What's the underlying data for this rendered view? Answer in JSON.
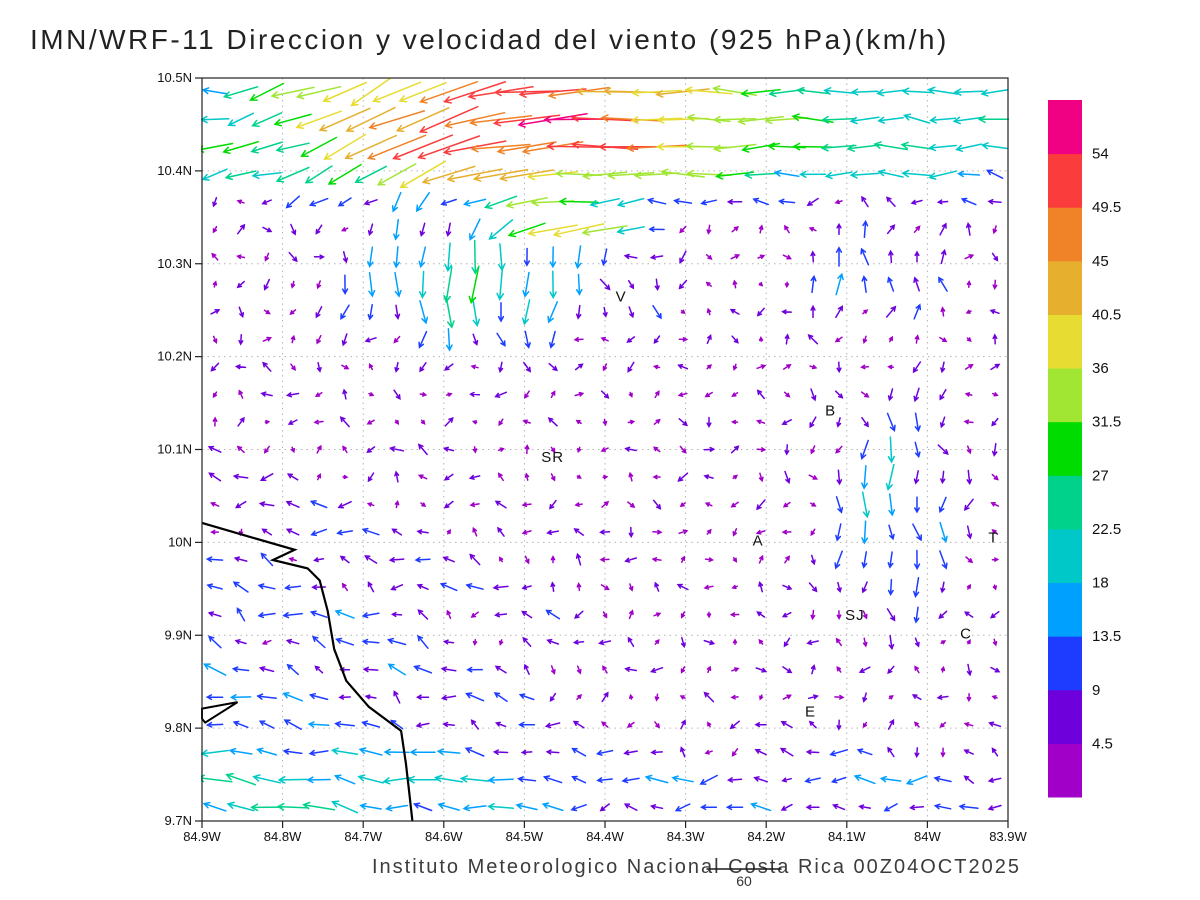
{
  "chart_data": {
    "type": "vector_field",
    "title": "IMN/WRF-11 Direccion y velocidad del viento (925 hPa)(km/h)",
    "footer": "Instituto Meteorologico Nacional Costa Rica 00Z04OCT2025",
    "model": "IMN/WRF-11",
    "variable": "Direccion y velocidad del viento",
    "level": "925 hPa",
    "units": "km/h",
    "valid_time": "00Z04OCT2025",
    "axes": {
      "lon_min": -84.9,
      "lon_max": -83.9,
      "lat_min": 9.7,
      "lat_max": 10.5,
      "x_ticks": {
        "values": [
          -84.9,
          -84.8,
          -84.7,
          -84.6,
          -84.5,
          -84.4,
          -84.3,
          -84.2,
          -84.1,
          -84.0,
          -83.9
        ],
        "labels": [
          "84.9W",
          "84.8W",
          "84.7W",
          "84.6W",
          "84.5W",
          "84.4W",
          "84.3W",
          "84.2W",
          "84.1W",
          "84W",
          "83.9W"
        ]
      },
      "y_ticks": {
        "values": [
          10.5,
          10.4,
          10.3,
          10.2,
          10.1,
          10.0,
          9.9,
          9.8,
          9.7
        ],
        "labels": [
          "10.5N",
          "10.4N",
          "10.3N",
          "10.2N",
          "10.1N",
          "10N",
          "9.9N",
          "9.8N",
          "9.7N"
        ]
      },
      "grid_on": true
    },
    "colorbar": {
      "position": "right",
      "levels": [
        4.5,
        9,
        13.5,
        18,
        22.5,
        27,
        31.5,
        36,
        40.5,
        45,
        49.5,
        54
      ],
      "labels": [
        "4.5",
        "9",
        "13.5",
        "18",
        "22.5",
        "27",
        "31.5",
        "36",
        "40.5",
        "45",
        "49.5",
        "54"
      ],
      "colors": [
        "#a000c8",
        "#6e00dc",
        "#1e3cff",
        "#00a0ff",
        "#00c8c8",
        "#00d28c",
        "#00dc00",
        "#a0e632",
        "#e6dc32",
        "#e6af2d",
        "#f08228",
        "#fa3c3c",
        "#f00082"
      ]
    },
    "reference_vector": {
      "value": 60,
      "label": "60"
    },
    "grid": {
      "cols": 31,
      "rows": 27
    },
    "stations": [
      {
        "label": "V",
        "lon": -84.38,
        "lat": 10.265
      },
      {
        "label": "B",
        "lon": -84.12,
        "lat": 10.142
      },
      {
        "label": "SR",
        "lon": -84.465,
        "lat": 10.092
      },
      {
        "label": "A",
        "lon": -84.21,
        "lat": 10.002
      },
      {
        "label": "SJ",
        "lon": -84.09,
        "lat": 9.922
      },
      {
        "label": "C",
        "lon": -83.952,
        "lat": 9.902
      },
      {
        "label": "E",
        "lon": -84.145,
        "lat": 9.818
      },
      {
        "label": "T",
        "lon": -83.918,
        "lat": 10.005
      }
    ],
    "coastline": [
      [
        -84.9,
        10.021
      ],
      [
        -84.841,
        10.006
      ],
      [
        -84.785,
        9.992
      ],
      [
        -84.812,
        9.981
      ],
      [
        -84.769,
        9.972
      ],
      [
        -84.754,
        9.959
      ],
      [
        -84.744,
        9.926
      ],
      [
        -84.736,
        9.885
      ],
      [
        -84.721,
        9.851
      ],
      [
        -84.693,
        9.823
      ],
      [
        -84.653,
        9.797
      ],
      [
        -84.647,
        9.762
      ],
      [
        -84.643,
        9.732
      ],
      [
        -84.639,
        9.7
      ]
    ],
    "islet": [
      [
        -84.9,
        9.821
      ],
      [
        -84.856,
        9.828
      ],
      [
        -84.896,
        9.806
      ],
      [
        -84.9,
        9.81
      ]
    ],
    "field_params": {
      "bg": {
        "amp": 3.6,
        "noise": 2.6
      },
      "jet": {
        "base": 20,
        "peak": 32,
        "lon_c": -84.48,
        "lon_w": 0.26,
        "lat_c": 10.45,
        "lat_w": 0.075,
        "turn": 0.5,
        "turn_lon": -84.7,
        "turn_w": 0.16
      },
      "fan": {
        "amp": 24,
        "lon_c": -84.57,
        "lon_w": 0.16,
        "lat_c": 10.28,
        "lat_w": 0.07
      },
      "filament": {
        "amp": 40,
        "lon_c": -84.45,
        "lon_w": 0.1,
        "lat_c": 10.345,
        "lat_w": 0.025
      },
      "ocean": {
        "amp": 11,
        "v": 3,
        "lon_edge": -84.52,
        "lat_edge": 10.03,
        "sharp": 14
      },
      "south_band": {
        "amp": 10,
        "lat_c": 9.735,
        "lat_w": 0.05
      },
      "streak": {
        "amp": 15,
        "lon_c": -84.05,
        "lon_w": 0.09,
        "lat_c": 10.04,
        "lat_w": 0.13
      },
      "updraft": {
        "amp": 12,
        "lon_c": -84.07,
        "lon_w": 0.1,
        "lat_c": 10.29,
        "lat_w": 0.06
      }
    }
  }
}
